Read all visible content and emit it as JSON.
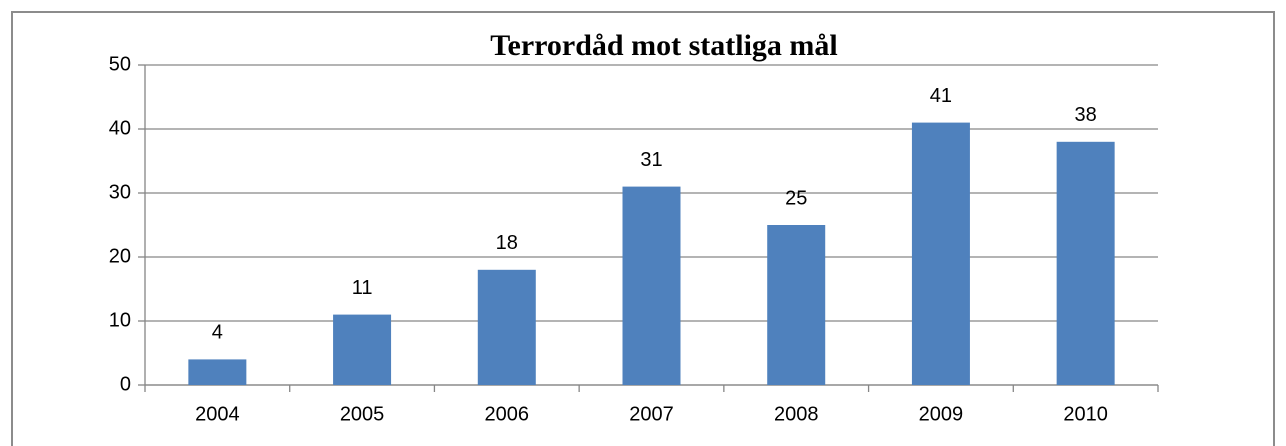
{
  "chart_data": {
    "type": "bar",
    "title": "Terrordåd mot statliga mål",
    "categories": [
      "2004",
      "2005",
      "2006",
      "2007",
      "2008",
      "2009",
      "2010"
    ],
    "values": [
      4,
      11,
      18,
      31,
      25,
      41,
      38
    ],
    "color": "#4f81bd",
    "ylim": [
      0,
      50
    ],
    "yticks": [
      0,
      10,
      20,
      30,
      40,
      50
    ],
    "grid": true
  }
}
